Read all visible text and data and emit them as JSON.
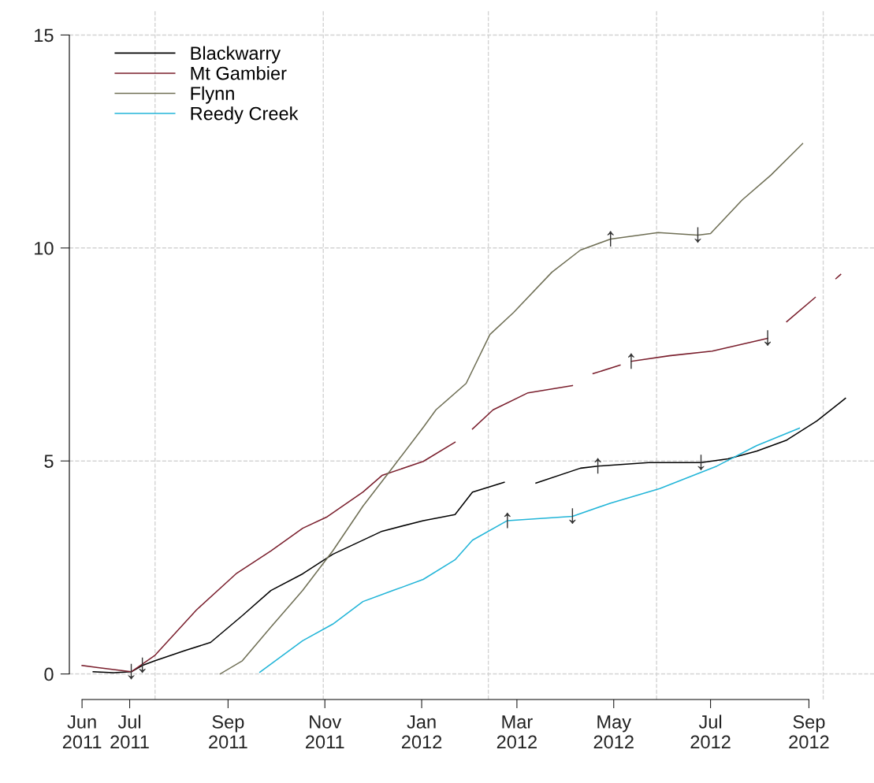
{
  "chart_data": {
    "type": "line",
    "xlim": [
      "2011-05-24",
      "2012-10-12"
    ],
    "xticks": [
      {
        "value": "2011-06-01",
        "label": "Jun\n2011"
      },
      {
        "value": "2011-07-01",
        "label": "Jul\n2011"
      },
      {
        "value": "2011-09-01",
        "label": "Sep\n2011"
      },
      {
        "value": "2011-11-01",
        "label": "Nov\n2011"
      },
      {
        "value": "2012-01-01",
        "label": "Jan\n2012"
      },
      {
        "value": "2012-03-01",
        "label": "Mar\n2012"
      },
      {
        "value": "2012-05-01",
        "label": "May\n2012"
      },
      {
        "value": "2012-07-01",
        "label": "Jul\n2012"
      },
      {
        "value": "2012-09-01",
        "label": "Sep\n2012"
      }
    ],
    "ylim": [
      -0.6,
      15.6
    ],
    "yticks": [
      0,
      5,
      10,
      15
    ],
    "grid": "y",
    "legend": "top left",
    "line_style": "solid",
    "marker": "none",
    "ref_lines": [
      {
        "axis": "x",
        "value": "2011-07-17",
        "color": "#d3d3d3",
        "line_style": "dashed"
      },
      {
        "axis": "x",
        "value": "2011-10-31",
        "color": "#d3d3d3",
        "line_style": "dashed"
      },
      {
        "axis": "x",
        "value": "2012-02-12",
        "color": "#d3d3d3",
        "line_style": "dashed"
      },
      {
        "axis": "x",
        "value": "2012-05-28",
        "color": "#d3d3d3",
        "line_style": "dashed"
      },
      {
        "axis": "x",
        "value": "2012-09-10",
        "color": "#d3d3d3",
        "line_style": "dashed"
      }
    ],
    "series": [
      {
        "name": "Blackwarry",
        "color": "#000000",
        "x": [
          "2011-06-08",
          "2011-06-21",
          "2011-07-02",
          "2011-07-09",
          "2011-07-17",
          "2011-08-05",
          "2011-08-21",
          "2011-09-10",
          "2011-09-28",
          "2011-10-18",
          "2011-11-06",
          "2011-12-07",
          "2012-01-02",
          "2012-01-22",
          "2012-02-02",
          "2012-02-22",
          "2012-02-27",
          "2012-03-13",
          "2012-04-10",
          "2012-04-21",
          "2012-05-23",
          "2012-06-25",
          "2012-07-12",
          "2012-07-30",
          "2012-08-18",
          "2012-09-06",
          "2012-09-24"
        ],
        "values": [
          0.05,
          0.03,
          0.05,
          0.2,
          0.31,
          0.55,
          0.74,
          1.37,
          1.96,
          2.35,
          2.81,
          3.35,
          3.6,
          3.74,
          4.27,
          4.5,
          null,
          4.48,
          4.83,
          4.88,
          4.96,
          4.96,
          5.05,
          5.23,
          5.49,
          5.94,
          6.47
        ]
      },
      {
        "name": "Mt Gambier",
        "color": "#7a1f2d",
        "x": [
          "2011-06-01",
          "2011-06-11",
          "2011-06-22",
          "2011-07-02",
          "2011-07-17",
          "2011-08-12",
          "2011-09-06",
          "2011-09-28",
          "2011-10-18",
          "2011-11-02",
          "2011-11-25",
          "2011-12-07",
          "2012-01-02",
          "2012-01-22",
          "2012-01-28",
          "2012-02-02",
          "2012-02-15",
          "2012-03-08",
          "2012-04-05",
          "2012-04-11",
          "2012-04-18",
          "2012-05-05",
          "2012-05-08",
          "2012-05-12",
          "2012-06-05",
          "2012-07-02",
          "2012-08-06",
          "2012-08-11",
          "2012-08-18",
          "2012-09-05",
          "2012-09-12",
          "2012-09-18",
          "2012-09-21"
        ],
        "values": [
          0.2,
          0.15,
          0.1,
          0.05,
          0.44,
          1.5,
          2.35,
          2.89,
          3.42,
          3.68,
          4.27,
          4.66,
          4.99,
          5.44,
          null,
          5.75,
          6.2,
          6.6,
          6.77,
          null,
          7.05,
          7.25,
          null,
          7.34,
          7.47,
          7.58,
          7.88,
          null,
          8.27,
          8.84,
          null,
          9.28,
          9.38
        ]
      },
      {
        "name": "Flynn",
        "color": "#6f6f55",
        "x": [
          "2011-08-27",
          "2011-09-10",
          "2011-09-28",
          "2011-10-18",
          "2011-11-06",
          "2011-11-25",
          "2011-12-14",
          "2012-01-02",
          "2012-01-10",
          "2012-01-29",
          "2012-02-13",
          "2012-02-28",
          "2012-03-23",
          "2012-04-10",
          "2012-04-29",
          "2012-05-29",
          "2012-06-23",
          "2012-07-01",
          "2012-07-21",
          "2012-08-08",
          "2012-08-28"
        ],
        "values": [
          0,
          0.31,
          1.1,
          1.96,
          2.89,
          3.94,
          4.86,
          5.79,
          6.2,
          6.82,
          7.97,
          8.49,
          9.43,
          9.95,
          10.21,
          10.36,
          10.3,
          10.34,
          11.13,
          11.71,
          12.45
        ]
      },
      {
        "name": "Reedy Creek",
        "color": "#22b5d8",
        "x": [
          "2011-09-21",
          "2011-10-18",
          "2011-11-06",
          "2011-11-25",
          "2011-12-14",
          "2012-01-02",
          "2012-01-22",
          "2012-02-02",
          "2012-02-24",
          "2012-04-05",
          "2012-04-29",
          "2012-05-30",
          "2012-07-05",
          "2012-07-30",
          "2012-08-26"
        ],
        "values": [
          0.04,
          0.78,
          1.17,
          1.7,
          1.96,
          2.22,
          2.68,
          3.14,
          3.6,
          3.7,
          4.01,
          4.35,
          4.88,
          5.36,
          5.77
        ]
      }
    ],
    "annotations": [
      {
        "text": "↓",
        "x": "2011-07-02",
        "y": 0.05
      },
      {
        "text": "↓",
        "x": "2011-07-09",
        "y": 0.2
      },
      {
        "text": "↑",
        "x": "2012-04-29",
        "y": 10.21
      },
      {
        "text": "↓",
        "x": "2012-06-23",
        "y": 10.3
      },
      {
        "text": "↑",
        "x": "2012-05-12",
        "y": 7.34
      },
      {
        "text": "↓",
        "x": "2012-08-06",
        "y": 7.88
      },
      {
        "text": "↑",
        "x": "2012-04-21",
        "y": 4.88
      },
      {
        "text": "↓",
        "x": "2012-06-25",
        "y": 4.96
      },
      {
        "text": "↓",
        "x": "2012-04-05",
        "y": 3.7
      },
      {
        "text": "↑",
        "x": "2012-02-24",
        "y": 3.6
      }
    ]
  }
}
